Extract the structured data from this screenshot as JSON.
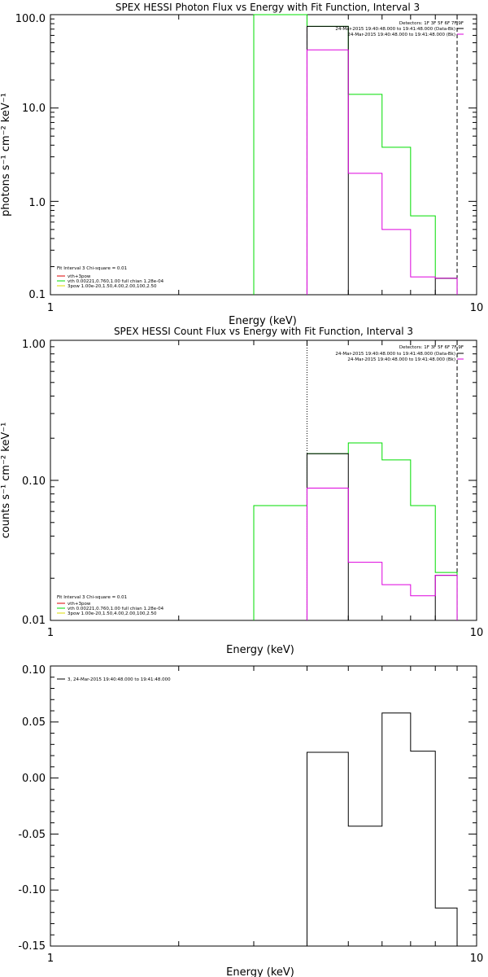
{
  "colors": {
    "black": "#000000",
    "green": "#00dd00",
    "magenta": "#dd00dd",
    "yellow": "#dddd00",
    "red": "#dd0000"
  },
  "chart_data": [
    {
      "type": "line",
      "title": "SPEX HESSI Photon Flux vs Energy with Fit Function, Interval 3",
      "xlabel": "Energy (keV)",
      "ylabel": "photons s⁻¹ cm⁻² keV⁻¹",
      "xscale": "log",
      "yscale": "log",
      "xlim": [
        1,
        10
      ],
      "ylim": [
        0.1,
        100
      ],
      "x_ticks": [
        "1",
        "10"
      ],
      "y_ticks": [
        "0.1",
        "1.0",
        "10.0",
        "100.0"
      ],
      "info_top_right": [
        "Detectors: 1F 3F 5F 6F 7F 9F",
        "24-Mar-2015 19:40:48.000 to 19:41:48.000 (Data-Bk)",
        "24-Mar-2015 19:40:48.000 to 19:41:48.000 (Bk)"
      ],
      "fit_info": [
        "Fit Interval 3    Chi-square = 0.01",
        "vth+3pow",
        "vth 0.00221,0.760,1.00   full chian 1.28e-04",
        "3pow 1.00e-20,1.50,4.00,2.00,100,2.50"
      ],
      "fit_info_colors": [
        "#000000",
        "#dd0000",
        "#00dd00",
        "#dddd00"
      ],
      "series": [
        {
          "name": "vth",
          "color": "#00dd00",
          "edges": [
            3,
            4,
            5,
            6,
            7,
            8,
            9
          ],
          "values": [
            100,
            75,
            14,
            3.8,
            0.7,
            0.15
          ]
        },
        {
          "name": "Data-Bk",
          "color": "#000000",
          "edges": [
            4,
            5,
            8,
            9
          ],
          "values": [
            75,
            null,
            0.15
          ]
        },
        {
          "name": "Bk",
          "color": "#dd00dd",
          "edges": [
            4,
            5,
            6,
            7,
            8,
            9
          ],
          "values": [
            42,
            2.0,
            0.5,
            0.155,
            0.15
          ]
        }
      ],
      "vlines": [
        {
          "x": 4,
          "color": "#dd00dd",
          "style": "dashed"
        },
        {
          "x": 9,
          "color": "#000000",
          "style": "dashed"
        }
      ]
    },
    {
      "type": "line",
      "title": "SPEX HESSI Count Flux vs Energy with Fit Function, Interval 3",
      "xlabel": "Energy (keV)",
      "ylabel": "counts s⁻¹ cm⁻² keV⁻¹",
      "xscale": "log",
      "yscale": "log",
      "xlim": [
        1,
        10
      ],
      "ylim": [
        0.01,
        1
      ],
      "x_ticks": [
        "1",
        "10"
      ],
      "y_ticks": [
        "0.01",
        "0.10",
        "1.00"
      ],
      "info_top_right": [
        "Detectors: 1F 3F 5F 6F 7F 9F",
        "24-Mar-2015 19:40:48.000 to 19:41:48.000 (Data-Bk)",
        "24-Mar-2015 19:40:48.000 to 19:41:48.000 (Bk)"
      ],
      "fit_info": [
        "Fit Interval 3    Chi-square = 0.01",
        "vth+3pow",
        "vth 0.00221,0.760,1.00   full chian 1.28e-04",
        "3pow 1.00e-20,1.50,4.00,2.00,100,2.50"
      ],
      "fit_info_colors": [
        "#000000",
        "#dd0000",
        "#00dd00",
        "#dddd00"
      ],
      "series": [
        {
          "name": "vth",
          "color": "#00dd00",
          "edges": [
            3,
            4,
            5,
            6,
            7,
            8,
            9
          ],
          "values": [
            0.066,
            0.155,
            0.185,
            0.14,
            0.066,
            0.022
          ]
        },
        {
          "name": "Data-Bk",
          "color": "#000000",
          "edges": [
            4,
            5,
            8,
            9
          ],
          "values": [
            0.155,
            null,
            0.021
          ]
        },
        {
          "name": "Bk",
          "color": "#dd00dd",
          "edges": [
            4,
            5,
            6,
            7,
            8,
            9
          ],
          "values": [
            0.088,
            0.026,
            0.018,
            0.015,
            0.021
          ]
        }
      ],
      "vlines": [
        {
          "x": 4,
          "color": "#000000",
          "style": "dotted"
        },
        {
          "x": 9,
          "color": "#000000",
          "style": "dashed"
        }
      ]
    },
    {
      "type": "line",
      "title": "",
      "xlabel": "Energy (keV)",
      "ylabel": "",
      "xscale": "log",
      "yscale": "linear",
      "xlim": [
        1,
        10
      ],
      "ylim": [
        -0.15,
        0.1
      ],
      "x_ticks": [
        "1",
        "10"
      ],
      "y_ticks": [
        "-0.15",
        "-0.10",
        "-0.05",
        "0.00",
        "0.05",
        "0.10"
      ],
      "legend": [
        "3, 24-Mar-2015 19:40:48.000 to 19:41:48.000"
      ],
      "series": [
        {
          "name": "3, 24-Mar-2015 19:40:48.000 to 19:41:48.000",
          "color": "#000000",
          "edges": [
            4,
            5,
            6,
            7,
            8,
            9
          ],
          "values": [
            0.023,
            -0.043,
            0.058,
            0.024,
            -0.116
          ]
        }
      ],
      "vlines": []
    }
  ]
}
